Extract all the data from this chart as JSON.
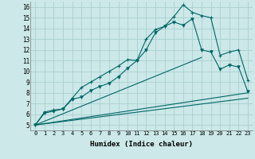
{
  "xlabel": "Humidex (Indice chaleur)",
  "xlim": [
    -0.5,
    23.5
  ],
  "ylim": [
    4.5,
    16.5
  ],
  "xticks": [
    0,
    1,
    2,
    3,
    4,
    5,
    6,
    7,
    8,
    9,
    10,
    11,
    12,
    13,
    14,
    15,
    16,
    17,
    18,
    19,
    20,
    21,
    22,
    23
  ],
  "yticks": [
    5,
    6,
    7,
    8,
    9,
    10,
    11,
    12,
    13,
    14,
    15,
    16
  ],
  "background_color": "#cce8e8",
  "grid_color": "#aad0d0",
  "line_color": "#006666",
  "line1_x": [
    0,
    1,
    2,
    3,
    4,
    5,
    6,
    7,
    8,
    9,
    10,
    11,
    12,
    13,
    14,
    15,
    16,
    17,
    18,
    19,
    20,
    21,
    22,
    23
  ],
  "line1_y": [
    5.0,
    6.2,
    6.4,
    6.5,
    7.5,
    8.5,
    9.0,
    9.5,
    10.0,
    10.5,
    11.1,
    11.0,
    13.0,
    13.9,
    14.2,
    15.1,
    16.2,
    15.5,
    15.2,
    15.0,
    11.5,
    11.8,
    12.0,
    9.2
  ],
  "line2_x": [
    0,
    1,
    2,
    3,
    4,
    5,
    6,
    7,
    8,
    9,
    10,
    11,
    12,
    13,
    14,
    15,
    16,
    17,
    18,
    19,
    20,
    21,
    22,
    23
  ],
  "line2_y": [
    5.0,
    6.1,
    6.3,
    6.5,
    7.4,
    7.6,
    8.2,
    8.6,
    8.9,
    9.5,
    10.3,
    11.0,
    12.0,
    13.6,
    14.2,
    14.6,
    14.3,
    14.9,
    12.0,
    11.8,
    10.2,
    10.6,
    10.4,
    8.1
  ],
  "line3_x": [
    0,
    18
  ],
  "line3_y": [
    5.0,
    11.3
  ],
  "line4_x": [
    0,
    23
  ],
  "line4_y": [
    5.0,
    8.0
  ],
  "line5_x": [
    0,
    23
  ],
  "line5_y": [
    5.0,
    7.5
  ]
}
